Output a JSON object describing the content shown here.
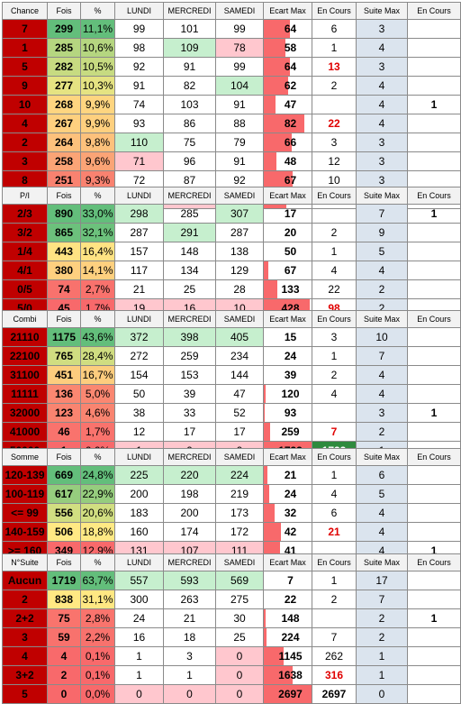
{
  "colors": {
    "label_bg": "#c00000",
    "suite_bg": "#dbe4ee",
    "bar": "#f8696b",
    "hi_green": "#c6efce",
    "hi_red": "#ffc7ce"
  },
  "tables": [
    {
      "headers": [
        "Chance",
        "Fois",
        "%",
        "LUNDI",
        "MERCREDI",
        "SAMEDI",
        "Ecart Max",
        "En Cours",
        "Suite Max",
        "En Cours"
      ],
      "rows": [
        {
          "label": "7",
          "fois": "299",
          "pct": "11,1%",
          "lundi": "99",
          "mercredi": "101",
          "samedi": "99",
          "ecart": "64",
          "ecart_frac": 0.55,
          "encours": "6",
          "suite": "3",
          "encours2": "",
          "hi": []
        },
        {
          "label": "1",
          "fois": "285",
          "pct": "10,6%",
          "lundi": "98",
          "mercredi": "109",
          "samedi": "78",
          "ecart": "58",
          "ecart_frac": 0.45,
          "encours": "1",
          "suite": "4",
          "encours2": "",
          "hi": [
            "mg",
            "sr"
          ]
        },
        {
          "label": "5",
          "fois": "282",
          "pct": "10,5%",
          "lundi": "92",
          "mercredi": "91",
          "samedi": "99",
          "ecart": "64",
          "ecart_frac": 0.55,
          "encours": "13",
          "encours_red": true,
          "suite": "3",
          "encours2": "",
          "hi": []
        },
        {
          "label": "9",
          "fois": "277",
          "pct": "10,3%",
          "lundi": "91",
          "mercredi": "82",
          "samedi": "104",
          "ecart": "62",
          "ecart_frac": 0.5,
          "encours": "2",
          "suite": "4",
          "encours2": "",
          "hi": [
            "sg"
          ]
        },
        {
          "label": "10",
          "fois": "268",
          "pct": "9,9%",
          "lundi": "74",
          "mercredi": "103",
          "samedi": "91",
          "ecart": "47",
          "ecart_frac": 0.25,
          "encours": "",
          "suite": "4",
          "encours2": "1",
          "hi": []
        },
        {
          "label": "4",
          "fois": "267",
          "pct": "9,9%",
          "lundi": "93",
          "mercredi": "86",
          "samedi": "88",
          "ecart": "82",
          "ecart_frac": 0.85,
          "encours": "22",
          "encours_red": true,
          "suite": "4",
          "encours2": "",
          "hi": []
        },
        {
          "label": "2",
          "fois": "264",
          "pct": "9,8%",
          "lundi": "110",
          "mercredi": "75",
          "samedi": "79",
          "ecart": "66",
          "ecart_frac": 0.58,
          "encours": "3",
          "suite": "3",
          "encours2": "",
          "hi": [
            "lg"
          ]
        },
        {
          "label": "3",
          "fois": "258",
          "pct": "9,6%",
          "lundi": "71",
          "mercredi": "96",
          "samedi": "91",
          "ecart": "48",
          "ecart_frac": 0.27,
          "encours": "12",
          "suite": "3",
          "encours2": "",
          "hi": [
            "lr"
          ]
        },
        {
          "label": "8",
          "fois": "251",
          "pct": "9,3%",
          "lundi": "72",
          "mercredi": "87",
          "samedi": "92",
          "ecart": "67",
          "ecart_frac": 0.6,
          "encours": "10",
          "suite": "3",
          "encours2": "",
          "hi": []
        },
        {
          "label": "6",
          "fois": "246",
          "pct": "9,1%",
          "lundi": "99",
          "mercredi": "69",
          "samedi": "78",
          "ecart": "61",
          "ecart_frac": 0.48,
          "encours": "5",
          "suite": "3",
          "encours2": "",
          "hi": [
            "mr",
            "sr"
          ]
        }
      ]
    },
    {
      "headers": [
        "P/I",
        "Fois",
        "%",
        "LUNDI",
        "MERCREDI",
        "SAMEDI",
        "Ecart Max",
        "En Cours",
        "Suite Max",
        "En Cours"
      ],
      "rows": [
        {
          "label": "2/3",
          "fois": "890",
          "pct": "33,0%",
          "lundi": "298",
          "mercredi": "285",
          "samedi": "307",
          "ecart": "17",
          "ecart_frac": 0.0,
          "encours": "",
          "suite": "7",
          "encours2": "1",
          "hi": [
            "lg",
            "sg"
          ]
        },
        {
          "label": "3/2",
          "fois": "865",
          "pct": "32,1%",
          "lundi": "287",
          "mercredi": "291",
          "samedi": "287",
          "ecart": "20",
          "ecart_frac": 0.0,
          "encours": "2",
          "suite": "9",
          "encours2": "",
          "hi": [
            "mg"
          ]
        },
        {
          "label": "1/4",
          "fois": "443",
          "pct": "16,4%",
          "lundi": "157",
          "mercredi": "148",
          "samedi": "138",
          "ecart": "50",
          "ecart_frac": 0.0,
          "encours": "1",
          "suite": "5",
          "encours2": "",
          "hi": []
        },
        {
          "label": "4/1",
          "fois": "380",
          "pct": "14,1%",
          "lundi": "117",
          "mercredi": "134",
          "samedi": "129",
          "ecart": "67",
          "ecart_frac": 0.1,
          "encours": "4",
          "suite": "4",
          "encours2": "",
          "hi": []
        },
        {
          "label": "0/5",
          "fois": "74",
          "pct": "2,7%",
          "lundi": "21",
          "mercredi": "25",
          "samedi": "28",
          "ecart": "133",
          "ecart_frac": 0.28,
          "encours": "22",
          "suite": "2",
          "encours2": "",
          "hi": []
        },
        {
          "label": "5/0",
          "fois": "45",
          "pct": "1,7%",
          "lundi": "19",
          "mercredi": "16",
          "samedi": "10",
          "ecart": "428",
          "ecart_frac": 0.97,
          "encours": "98",
          "encours_red": true,
          "suite": "2",
          "encours2": "",
          "hi": [
            "lr",
            "mr",
            "sr"
          ]
        }
      ]
    },
    {
      "headers": [
        "Combi",
        "Fois",
        "%",
        "LUNDI",
        "MERCREDI",
        "SAMEDI",
        "Ecart Max",
        "En Cours",
        "Suite Max",
        "En Cours"
      ],
      "rows": [
        {
          "label": "21110",
          "fois": "1175",
          "pct": "43,6%",
          "lundi": "372",
          "mercredi": "398",
          "samedi": "405",
          "ecart": "15",
          "ecart_frac": 0.0,
          "encours": "3",
          "suite": "10",
          "encours2": "",
          "hi": [
            "lg",
            "mg",
            "sg"
          ]
        },
        {
          "label": "22100",
          "fois": "765",
          "pct": "28,4%",
          "lundi": "272",
          "mercredi": "259",
          "samedi": "234",
          "ecart": "24",
          "ecart_frac": 0.0,
          "encours": "1",
          "suite": "7",
          "encours2": "",
          "hi": []
        },
        {
          "label": "31100",
          "fois": "451",
          "pct": "16,7%",
          "lundi": "154",
          "mercredi": "153",
          "samedi": "144",
          "ecart": "39",
          "ecart_frac": 0.0,
          "encours": "2",
          "suite": "4",
          "encours2": "",
          "hi": []
        },
        {
          "label": "11111",
          "fois": "136",
          "pct": "5,0%",
          "lundi": "50",
          "mercredi": "39",
          "samedi": "47",
          "ecart": "120",
          "ecart_frac": 0.04,
          "encours": "4",
          "suite": "4",
          "encours2": "",
          "hi": []
        },
        {
          "label": "32000",
          "fois": "123",
          "pct": "4,6%",
          "lundi": "38",
          "mercredi": "33",
          "samedi": "52",
          "ecart": "93",
          "ecart_frac": 0.02,
          "encours": "",
          "suite": "3",
          "encours2": "1",
          "hi": []
        },
        {
          "label": "41000",
          "fois": "46",
          "pct": "1,7%",
          "lundi": "12",
          "mercredi": "17",
          "samedi": "17",
          "ecart": "259",
          "ecart_frac": 0.14,
          "encours": "7",
          "encours_red": true,
          "suite": "2",
          "encours2": "",
          "hi": []
        },
        {
          "label": "50000",
          "fois": "1",
          "pct": "0,0%",
          "lundi": "1",
          "mercredi": "0",
          "samedi": "0",
          "ecart": "1733",
          "ecart_frac": 1.0,
          "encours": "1733",
          "encours_green": true,
          "suite": "1",
          "encours2": "",
          "hi": [
            "lr",
            "mr",
            "sr"
          ]
        }
      ]
    },
    {
      "headers": [
        "Somme",
        "Fois",
        "%",
        "LUNDI",
        "MERCREDI",
        "SAMEDI",
        "Ecart Max",
        "En Cours",
        "Suite Max",
        "En Cours"
      ],
      "rows": [
        {
          "label": "120-139",
          "fois": "669",
          "pct": "24,8%",
          "lundi": "225",
          "mercredi": "220",
          "samedi": "224",
          "ecart": "21",
          "ecart_frac": 0.08,
          "encours": "1",
          "suite": "6",
          "encours2": "",
          "hi": [
            "lg",
            "mg",
            "sg"
          ]
        },
        {
          "label": "100-119",
          "fois": "617",
          "pct": "22,9%",
          "lundi": "200",
          "mercredi": "198",
          "samedi": "219",
          "ecart": "24",
          "ecart_frac": 0.12,
          "encours": "4",
          "suite": "5",
          "encours2": "",
          "hi": []
        },
        {
          "label": "<= 99",
          "fois": "556",
          "pct": "20,6%",
          "lundi": "183",
          "mercredi": "200",
          "samedi": "173",
          "ecart": "32",
          "ecart_frac": 0.22,
          "encours": "6",
          "suite": "4",
          "encours2": "",
          "hi": []
        },
        {
          "label": "140-159",
          "fois": "506",
          "pct": "18,8%",
          "lundi": "160",
          "mercredi": "174",
          "samedi": "172",
          "ecart": "42",
          "ecart_frac": 0.35,
          "encours": "21",
          "encours_red": true,
          "suite": "4",
          "encours2": "",
          "hi": []
        },
        {
          "label": ">= 160",
          "fois": "349",
          "pct": "12,9%",
          "lundi": "131",
          "mercredi": "107",
          "samedi": "111",
          "ecart": "41",
          "ecart_frac": 0.34,
          "encours": "",
          "suite": "4",
          "encours2": "1",
          "hi": [
            "lr",
            "mr",
            "sr"
          ]
        }
      ]
    },
    {
      "headers": [
        "N°Suite",
        "Fois",
        "%",
        "LUNDI",
        "MERCREDI",
        "SAMEDI",
        "Ecart Max",
        "En Cours",
        "Suite Max",
        "En Cours"
      ],
      "rows": [
        {
          "label": "Aucun",
          "fois": "1719",
          "pct": "63,7%",
          "lundi": "557",
          "mercredi": "593",
          "samedi": "569",
          "ecart": "7",
          "ecart_frac": 0.0,
          "encours": "1",
          "suite": "17",
          "encours2": "",
          "hi": [
            "lg",
            "mg",
            "sg"
          ]
        },
        {
          "label": "2",
          "fois": "838",
          "pct": "31,1%",
          "lundi": "300",
          "mercredi": "263",
          "samedi": "275",
          "ecart": "22",
          "ecart_frac": 0.0,
          "encours": "2",
          "suite": "7",
          "encours2": "",
          "hi": []
        },
        {
          "label": "2+2",
          "fois": "75",
          "pct": "2,8%",
          "lundi": "24",
          "mercredi": "21",
          "samedi": "30",
          "ecart": "148",
          "ecart_frac": 0.03,
          "encours": "",
          "suite": "2",
          "encours2": "1",
          "hi": []
        },
        {
          "label": "3",
          "fois": "59",
          "pct": "2,2%",
          "lundi": "16",
          "mercredi": "18",
          "samedi": "25",
          "ecart": "224",
          "ecart_frac": 0.06,
          "encours": "7",
          "suite": "2",
          "encours2": "",
          "hi": []
        },
        {
          "label": "4",
          "fois": "4",
          "pct": "0,1%",
          "lundi": "1",
          "mercredi": "3",
          "samedi": "0",
          "ecart": "1145",
          "ecart_frac": 0.42,
          "encours": "262",
          "suite": "1",
          "encours2": "",
          "hi": [
            "sr"
          ]
        },
        {
          "label": "3+2",
          "fois": "2",
          "pct": "0,1%",
          "lundi": "1",
          "mercredi": "1",
          "samedi": "0",
          "ecart": "1638",
          "ecart_frac": 0.6,
          "encours": "316",
          "encours_red": true,
          "suite": "1",
          "encours2": "",
          "hi": [
            "sr"
          ]
        },
        {
          "label": "5",
          "fois": "0",
          "pct": "0,0%",
          "lundi": "0",
          "mercredi": "0",
          "samedi": "0",
          "ecart": "2697",
          "ecart_frac": 1.0,
          "encours": "2697",
          "encours_bold": true,
          "suite": "0",
          "encours2": "",
          "hi": [
            "lr",
            "mr",
            "sr"
          ]
        }
      ]
    }
  ]
}
